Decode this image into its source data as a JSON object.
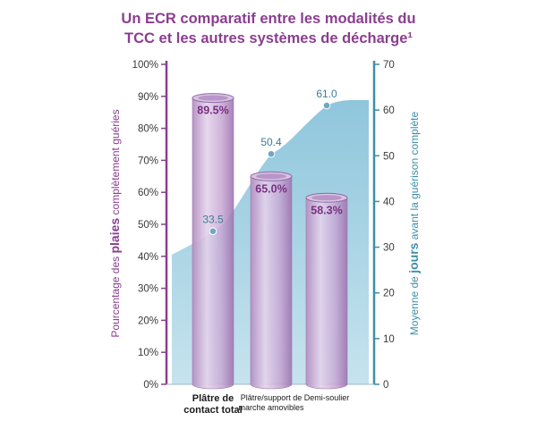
{
  "title": {
    "line1": "Un ECR comparatif entre les modalités du",
    "line2": "TCC et les autres systèmes de décharge¹"
  },
  "yaxis_left": {
    "label_pre": "Pourcentage des ",
    "label_bold": "plaies",
    "label_post": " complètement guéries"
  },
  "yaxis_right": {
    "label_pre": "Moyenne de ",
    "label_bold": "jours",
    "label_post": " avant la guérison complète"
  },
  "colors": {
    "purple": "#8a3e8f",
    "teal": "#3e8fa8",
    "area": "#aad4e4"
  },
  "chart_data": {
    "type": "bar",
    "title": "Un ECR comparatif entre les modalités du TCC et les autres systèmes de décharge¹",
    "categories": [
      "Plâtre de contact total",
      "Plâtre/support de marche amovibles",
      "Demi-soulier"
    ],
    "category_lines": [
      [
        "Plâtre de",
        "contact total"
      ],
      [
        "Plâtre/support de",
        "marche amovibles"
      ],
      [
        "Demi-soulier"
      ]
    ],
    "series": [
      {
        "values": [
          89.5,
          65.0,
          58.3
        ],
        "labels": [
          "89.5%",
          "65.0%",
          "58.3%"
        ],
        "axis": "left",
        "render": "cylinder"
      },
      {
        "values": [
          33.5,
          50.4,
          61.0
        ],
        "labels": [
          "33.5",
          "50.4",
          "61.0"
        ],
        "axis": "right",
        "render": "area"
      }
    ],
    "ylim_left": [
      0,
      100
    ],
    "ylim_right": [
      0,
      70
    ],
    "yticks_left": [
      "0%",
      "10%",
      "20%",
      "30%",
      "40%",
      "50%",
      "60%",
      "70%",
      "80%",
      "90%",
      "100%"
    ],
    "yticks_right": [
      "0",
      "10",
      "20",
      "30",
      "40",
      "50",
      "60",
      "70"
    ]
  }
}
